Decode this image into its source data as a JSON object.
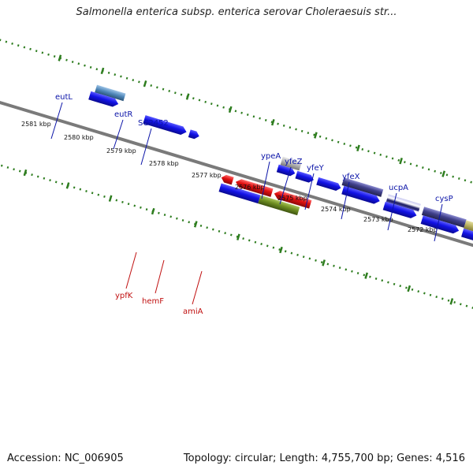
{
  "title": "Salmonella enterica subsp. enterica serovar Choleraesuis str...",
  "footer": {
    "accession": "Accession: NC_006905",
    "summary": "Topology: circular; Length: 4,755,700 bp; Genes: 4,516"
  },
  "colors": {
    "backbone": "#808080",
    "tick": "#2e7d1f",
    "label_forward": "#0b14a8",
    "label_reverse": "#c01010",
    "blue_gene": "#1212e6",
    "red_gene": "#e01010",
    "steel_gene": "#4f86b8",
    "grey_gene": "#b4b4b4",
    "slate_gene": "#3f3f8a",
    "olive_gene": "#6f8f22",
    "khaki_gene": "#b8b060"
  },
  "kbp_labels": [
    "2581 kbp",
    "2580 kbp",
    "2579 kbp",
    "2578 kbp",
    "2577 kbp",
    "2576 kbp",
    "2575 kbp",
    "2574 kbp",
    "2573 kbp",
    "2572 kbp"
  ],
  "top_genes": [
    {
      "name": "eutL",
      "strand": "forward"
    },
    {
      "name": "eutR",
      "strand": "forward"
    },
    {
      "name": "SC2452",
      "strand": "forward"
    },
    {
      "name": "ypeA",
      "strand": "forward"
    },
    {
      "name": "yfeZ",
      "strand": "forward"
    },
    {
      "name": "yfeY",
      "strand": "forward"
    },
    {
      "name": "yfeX",
      "strand": "forward"
    },
    {
      "name": "ucpA",
      "strand": "forward"
    },
    {
      "name": "cysP",
      "strand": "forward"
    }
  ],
  "bottom_genes": [
    {
      "name": "ypfK",
      "strand": "reverse"
    },
    {
      "name": "hemF",
      "strand": "reverse"
    },
    {
      "name": "amiA",
      "strand": "reverse"
    }
  ]
}
